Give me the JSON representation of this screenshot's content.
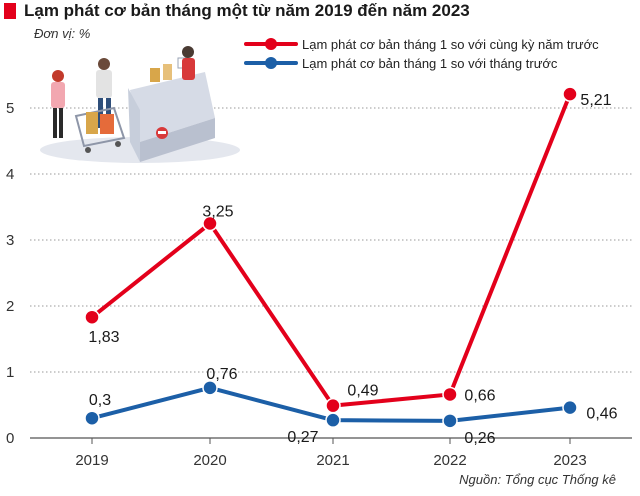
{
  "header": {
    "title": "Lạm phát cơ bản tháng một từ năm 2019 đến năm 2023"
  },
  "unit_label": "Đơn vị: %",
  "source": "Nguồn: Tổng cục Thống kê",
  "colors": {
    "series1": "#e3001b",
    "series2": "#1c5fa7",
    "accent": "#e3001b"
  },
  "illustration": {
    "icon": "shopping-checkout-illustration"
  },
  "chart_data": {
    "type": "line",
    "title": "Lạm phát cơ bản tháng một từ năm 2019 đến năm 2023",
    "xlabel": "",
    "ylabel": "",
    "categories": [
      "2019",
      "2020",
      "2021",
      "2022",
      "2023"
    ],
    "yticks": [
      "0",
      "1",
      "2",
      "3",
      "4",
      "5"
    ],
    "ylim": [
      0,
      5.5
    ],
    "grid": true,
    "legend_position": "top-right",
    "series": [
      {
        "name": "Lạm phát cơ bản tháng 1 so với cùng kỳ năm trước",
        "values": [
          1.83,
          3.25,
          0.49,
          0.66,
          5.21
        ],
        "labels": [
          "1,83",
          "3,25",
          "0,49",
          "0,66",
          "5,21"
        ],
        "color": "#e3001b"
      },
      {
        "name": "Lạm phát cơ bản tháng 1 so với tháng trước",
        "values": [
          0.3,
          0.76,
          0.27,
          0.26,
          0.46
        ],
        "labels": [
          "0,3",
          "0,76",
          "0,27",
          "0,26",
          "0,46"
        ],
        "color": "#1c5fa7"
      }
    ]
  }
}
